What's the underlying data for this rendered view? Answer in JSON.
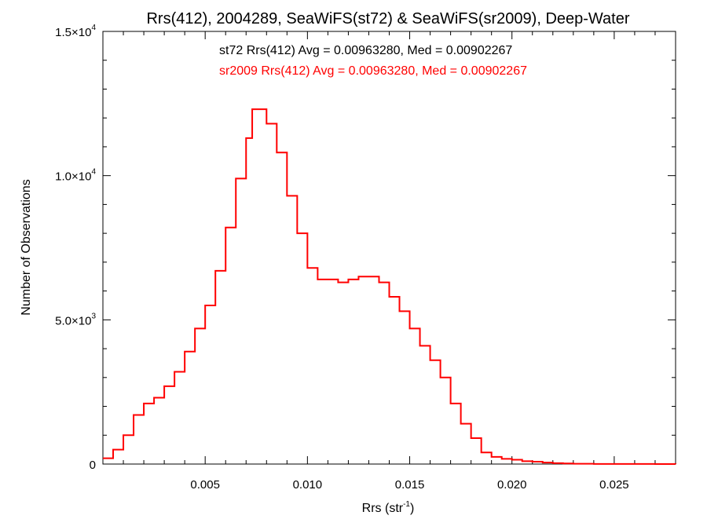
{
  "chart_data": {
    "type": "line",
    "title": "Rrs(412), 2004289, SeaWiFS(st72) & SeaWiFS(sr2009), Deep-Water",
    "xlabel_main": "Rrs (str",
    "xlabel_sup": "-1",
    "xlabel_close": ")",
    "ylabel": "Number of Observations",
    "xlim": [
      0.0,
      0.028
    ],
    "ylim": [
      0,
      15000
    ],
    "x_ticks": [
      0.005,
      0.01,
      0.015,
      0.02,
      0.025
    ],
    "x_tick_labels": [
      "0.005",
      "0.010",
      "0.015",
      "0.020",
      "0.025"
    ],
    "y_ticks": [
      {
        "value": 0,
        "mant": "0",
        "exp": ""
      },
      {
        "value": 5000,
        "mant": "5.0×10",
        "exp": "3"
      },
      {
        "value": 10000,
        "mant": "1.0×10",
        "exp": "4"
      },
      {
        "value": 15000,
        "mant": "1.5×10",
        "exp": "4"
      }
    ],
    "annotations": [
      {
        "text": "st72 Rrs(412) Avg = 0.00963280, Med = 0.00902267",
        "color": "#000000"
      },
      {
        "text": "sr2009 Rrs(412) Avg = 0.00963280, Med = 0.00902267",
        "color": "#ff0000"
      }
    ],
    "series": [
      {
        "name": "sr2009",
        "color": "#ff0000",
        "x": [
          0.0,
          0.0005,
          0.001,
          0.0015,
          0.002,
          0.0025,
          0.003,
          0.0035,
          0.004,
          0.0045,
          0.005,
          0.0055,
          0.006,
          0.0065,
          0.007,
          0.0073,
          0.0075,
          0.0078,
          0.008,
          0.0085,
          0.009,
          0.0095,
          0.01,
          0.0105,
          0.011,
          0.0115,
          0.012,
          0.0125,
          0.013,
          0.0135,
          0.014,
          0.0145,
          0.015,
          0.0155,
          0.016,
          0.0165,
          0.017,
          0.0175,
          0.018,
          0.0185,
          0.019,
          0.0195,
          0.02,
          0.0205,
          0.021,
          0.0215,
          0.022,
          0.0225,
          0.023,
          0.024,
          0.025,
          0.026,
          0.027,
          0.028
        ],
        "y": [
          200,
          500,
          1000,
          1700,
          2100,
          2300,
          2700,
          3200,
          3900,
          4700,
          5500,
          6700,
          8200,
          9900,
          11300,
          12300,
          12300,
          12300,
          11800,
          10800,
          9300,
          8000,
          6800,
          6400,
          6400,
          6300,
          6400,
          6500,
          6500,
          6300,
          5800,
          5300,
          4700,
          4100,
          3600,
          3000,
          2100,
          1400,
          900,
          400,
          250,
          180,
          150,
          100,
          80,
          50,
          30,
          20,
          10,
          5,
          3,
          2,
          1,
          0
        ]
      }
    ]
  }
}
